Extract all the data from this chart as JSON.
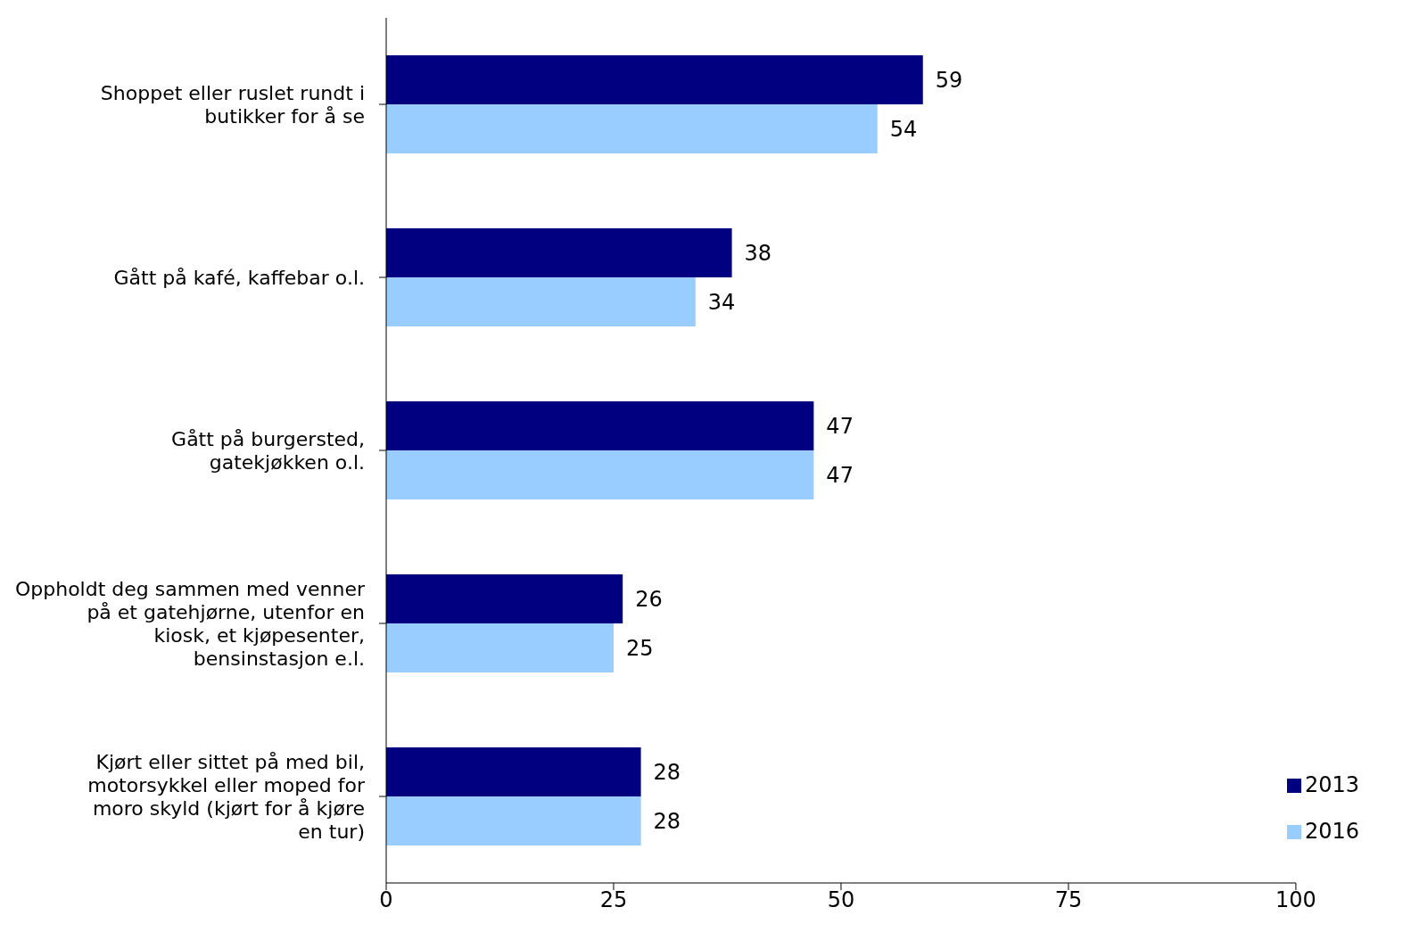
{
  "chart_data": {
    "type": "bar",
    "orientation": "horizontal",
    "categories": [
      "Shoppet eller ruslet rundt i butikker for å se",
      "Gått på kafé, kaffebar o.l.",
      "Gått på burgersted, gatekjøkken o.l.",
      "Oppholdt deg sammen med venner på et gatehjørne, utenfor en kiosk, et kjøpesenter, bensinstasjon e.l.",
      "Kjørt eller sittet på med bil, motorsykkel eller moped for moro skyld (kjørt for å kjøre en tur)"
    ],
    "series": [
      {
        "name": "2013",
        "color": "#000080",
        "values": [
          59,
          38,
          47,
          26,
          28
        ]
      },
      {
        "name": "2016",
        "color": "#99ccff",
        "values": [
          54,
          34,
          47,
          25,
          28
        ]
      }
    ],
    "xlim": [
      0,
      100
    ],
    "xticks": [
      0,
      25,
      50,
      75,
      100
    ],
    "data_labels": true,
    "legend": "bottom right",
    "grid": false
  }
}
